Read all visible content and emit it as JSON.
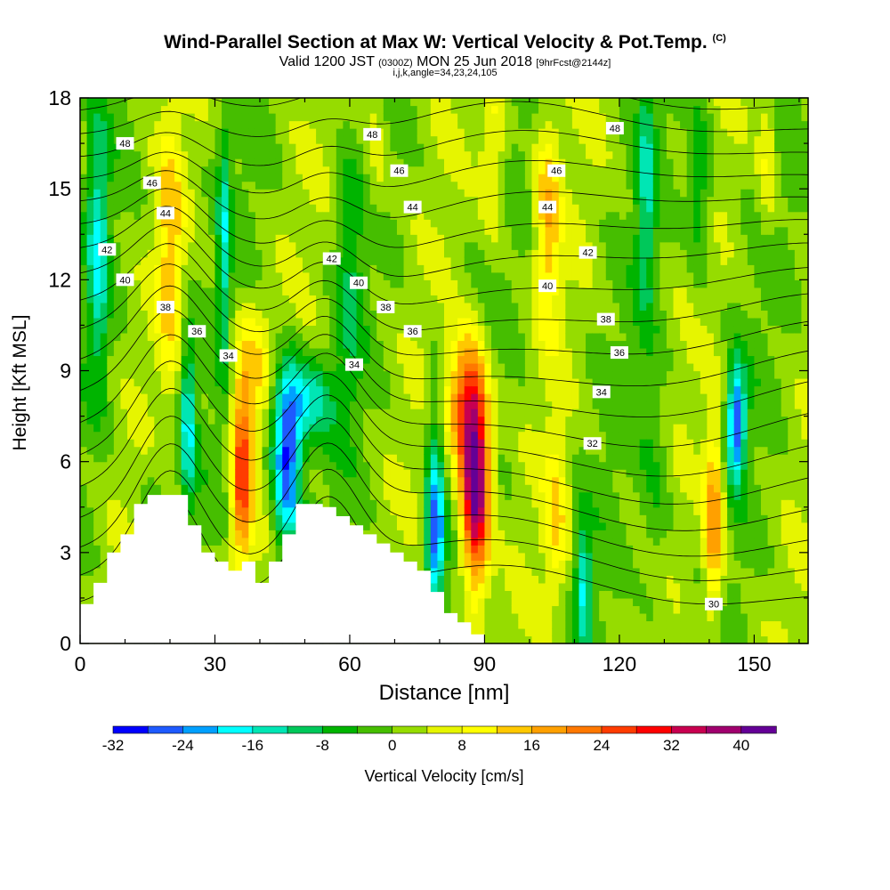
{
  "header": {
    "title": "Wind-Parallel Section at Max W: Vertical Velocity & Pot.Temp.",
    "copyright": "(C)",
    "valid_prefix": "Valid 1200 JST",
    "valid_zulu": "(0300Z)",
    "valid_date": "MON 25 Jun 2018",
    "forecast": "[9hrFcst@2144z]",
    "indices": "i,j,k,angle=34,23,24,105"
  },
  "chart_data": {
    "type": "heatmap",
    "title": "Wind-Parallel Section at Max W: Vertical Velocity & Pot.Temp.",
    "xlabel": "Distance [nm]",
    "ylabel": "Height [Kft MSL]",
    "xlim": [
      0,
      162
    ],
    "ylim": [
      0,
      18
    ],
    "x_ticks": [
      0,
      30,
      60,
      90,
      120,
      150
    ],
    "y_ticks": [
      0,
      3,
      6,
      9,
      12,
      15,
      18
    ],
    "colorbar": {
      "label": "Vertical Velocity [cm/s]",
      "min": -32,
      "max": 44,
      "step": 4,
      "tick_values": [
        -32,
        -24,
        -16,
        -8,
        0,
        8,
        16,
        24,
        32,
        40
      ],
      "colors": [
        "#0000ff",
        "#1e5aff",
        "#00a0ff",
        "#00ffff",
        "#00e6b4",
        "#00c85a",
        "#00b400",
        "#46be00",
        "#96dc00",
        "#e6f500",
        "#ffff00",
        "#ffc800",
        "#ffa000",
        "#ff7800",
        "#ff3c00",
        "#ff0000",
        "#c80050",
        "#a0006e",
        "#640096"
      ]
    },
    "terrain": [
      [
        0,
        1.3
      ],
      [
        3,
        1.3
      ],
      [
        3,
        2
      ],
      [
        6,
        2
      ],
      [
        6,
        3
      ],
      [
        9,
        3
      ],
      [
        9,
        3.6
      ],
      [
        12,
        3.6
      ],
      [
        12,
        4.6
      ],
      [
        15,
        4.6
      ],
      [
        15,
        4.9
      ],
      [
        24,
        4.9
      ],
      [
        24,
        3.9
      ],
      [
        27,
        3.9
      ],
      [
        27,
        3.0
      ],
      [
        30,
        3.0
      ],
      [
        30,
        2.7
      ],
      [
        33,
        2.7
      ],
      [
        33,
        2.4
      ],
      [
        36,
        2.4
      ],
      [
        36,
        2.7
      ],
      [
        39,
        2.7
      ],
      [
        39,
        2.0
      ],
      [
        42,
        2.0
      ],
      [
        42,
        2.7
      ],
      [
        45,
        2.7
      ],
      [
        45,
        3.6
      ],
      [
        48,
        3.6
      ],
      [
        48,
        4.6
      ],
      [
        54,
        4.6
      ],
      [
        54,
        4.5
      ],
      [
        57,
        4.5
      ],
      [
        57,
        4.2
      ],
      [
        60,
        4.2
      ],
      [
        60,
        3.9
      ],
      [
        63,
        3.9
      ],
      [
        63,
        3.6
      ],
      [
        66,
        3.6
      ],
      [
        66,
        3.3
      ],
      [
        69,
        3.3
      ],
      [
        69,
        3.0
      ],
      [
        72,
        3.0
      ],
      [
        72,
        2.7
      ],
      [
        75,
        2.7
      ],
      [
        75,
        2.4
      ],
      [
        78,
        2.4
      ],
      [
        78,
        1.7
      ],
      [
        81,
        1.7
      ],
      [
        81,
        1.0
      ],
      [
        84,
        1.0
      ],
      [
        84,
        0.7
      ],
      [
        87,
        0.7
      ],
      [
        87,
        0.3
      ],
      [
        90,
        0.3
      ],
      [
        90,
        0
      ]
    ],
    "w_features": [
      {
        "x": 88,
        "z": 5.0,
        "w": 42,
        "sx": 2.2,
        "sz": 2.2
      },
      {
        "x": 86,
        "z": 8.0,
        "w": 24,
        "sx": 3.0,
        "sz": 1.5
      },
      {
        "x": 36,
        "z": 5.5,
        "w": 26,
        "sx": 1.6,
        "sz": 2.0
      },
      {
        "x": 38,
        "z": 9.0,
        "w": 12,
        "sx": 3.0,
        "sz": 1.5
      },
      {
        "x": 46,
        "z": 6.0,
        "w": -30,
        "sx": 2.2,
        "sz": 2.0
      },
      {
        "x": 50,
        "z": 8.0,
        "w": -16,
        "sx": 4.5,
        "sz": 1.0
      },
      {
        "x": 79,
        "z": 3.4,
        "w": -26,
        "sx": 1.4,
        "sz": 1.5
      },
      {
        "x": 79,
        "z": 6.5,
        "w": -10,
        "sx": 1.5,
        "sz": 2.0
      },
      {
        "x": 146,
        "z": 7.3,
        "w": -28,
        "sx": 1.4,
        "sz": 1.3
      },
      {
        "x": 141,
        "z": 4.0,
        "w": 20,
        "sx": 1.6,
        "sz": 2.2
      },
      {
        "x": 24,
        "z": 7.5,
        "w": -18,
        "sx": 1.2,
        "sz": 2.0
      },
      {
        "x": 4,
        "z": 13.0,
        "w": -16,
        "sx": 1.6,
        "sz": 3.0
      },
      {
        "x": 32,
        "z": 13.0,
        "w": -14,
        "sx": 1.0,
        "sz": 3.0
      },
      {
        "x": 104,
        "z": 14.0,
        "w": 14,
        "sx": 2.0,
        "sz": 2.5
      },
      {
        "x": 112,
        "z": 2.0,
        "w": -16,
        "sx": 1.2,
        "sz": 1.5
      },
      {
        "x": 126,
        "z": 15.0,
        "w": -12,
        "sx": 1.5,
        "sz": 3.0
      },
      {
        "x": 20,
        "z": 13.0,
        "w": 12,
        "sx": 2.0,
        "sz": 3.0
      },
      {
        "x": 92,
        "z": 16.0,
        "w": 10,
        "sx": 2.0,
        "sz": 2.0
      },
      {
        "x": 66,
        "z": 16.0,
        "w": 6,
        "sx": 2.0,
        "sz": 2.0
      },
      {
        "x": 106,
        "z": 4.0,
        "w": 10,
        "sx": 2.0,
        "sz": 2.0
      },
      {
        "x": 60,
        "z": 12.0,
        "w": -8,
        "sx": 2.0,
        "sz": 3.0
      },
      {
        "x": 16,
        "z": 3.0,
        "w": -8,
        "sx": 2.0,
        "sz": 2.0
      },
      {
        "x": 153,
        "z": 16.0,
        "w": 8,
        "sx": 1.5,
        "sz": 2.0
      },
      {
        "x": 138,
        "z": 15.0,
        "w": -10,
        "sx": 2.0,
        "sz": 2.0
      },
      {
        "x": 128,
        "z": 5.0,
        "w": -6,
        "sx": 2.5,
        "sz": 3.0
      }
    ],
    "theta_labels": [
      {
        "x": 10,
        "z": 16.5,
        "text": "48"
      },
      {
        "x": 65,
        "z": 16.8,
        "text": "48"
      },
      {
        "x": 119,
        "z": 17.0,
        "text": "48"
      },
      {
        "x": 16,
        "z": 15.2,
        "text": "46"
      },
      {
        "x": 71,
        "z": 15.6,
        "text": "46"
      },
      {
        "x": 106,
        "z": 15.6,
        "text": "46"
      },
      {
        "x": 19,
        "z": 14.2,
        "text": "44"
      },
      {
        "x": 74,
        "z": 14.4,
        "text": "44"
      },
      {
        "x": 104,
        "z": 14.4,
        "text": "44"
      },
      {
        "x": 6,
        "z": 13.0,
        "text": "42"
      },
      {
        "x": 56,
        "z": 12.7,
        "text": "42"
      },
      {
        "x": 113,
        "z": 12.9,
        "text": "42"
      },
      {
        "x": 10,
        "z": 12.0,
        "text": "40"
      },
      {
        "x": 62,
        "z": 11.9,
        "text": "40"
      },
      {
        "x": 104,
        "z": 11.8,
        "text": "40"
      },
      {
        "x": 19,
        "z": 11.1,
        "text": "38"
      },
      {
        "x": 68,
        "z": 11.1,
        "text": "38"
      },
      {
        "x": 117,
        "z": 10.7,
        "text": "38"
      },
      {
        "x": 26,
        "z": 10.3,
        "text": "36"
      },
      {
        "x": 74,
        "z": 10.3,
        "text": "36"
      },
      {
        "x": 120,
        "z": 9.6,
        "text": "36"
      },
      {
        "x": 33,
        "z": 9.5,
        "text": "34"
      },
      {
        "x": 61,
        "z": 9.2,
        "text": "34"
      },
      {
        "x": 116,
        "z": 8.3,
        "text": "34"
      },
      {
        "x": 114,
        "z": 6.6,
        "text": "32"
      },
      {
        "x": 141,
        "z": 1.3,
        "text": "30"
      }
    ]
  }
}
